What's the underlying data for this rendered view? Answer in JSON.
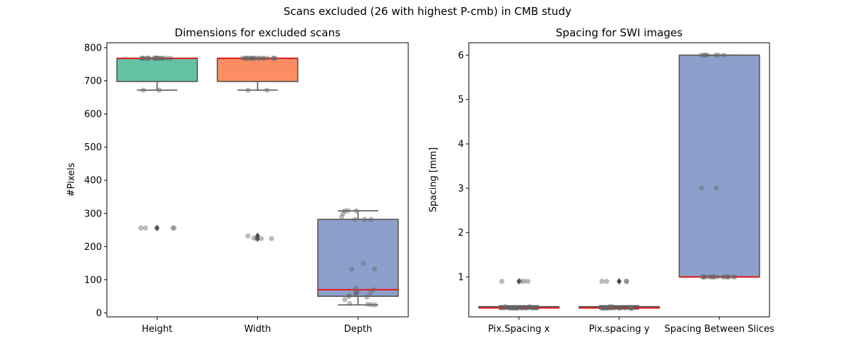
{
  "suptitle": "Scans excluded (26 with highest P-cmb) in CMB study",
  "colors": {
    "median": "#e41a1c",
    "box_edge": "#555555",
    "points": "#666666",
    "outlier": "#444444"
  },
  "chart_data": [
    {
      "type": "box",
      "title": "Dimensions for excluded scans",
      "xlabel": "",
      "ylabel": "#Pixels",
      "ylim": [
        -12,
        815
      ],
      "yticks": [
        0,
        100,
        200,
        300,
        400,
        500,
        600,
        700,
        800
      ],
      "grid": false,
      "categories": [
        "Height",
        "Width",
        "Depth"
      ],
      "boxes": [
        {
          "name": "Height",
          "color": "#66c2a5",
          "q1": 698,
          "median": 768,
          "q3": 768,
          "whisker_low": 672,
          "whisker_high": 768,
          "outliers": [
            256
          ]
        },
        {
          "name": "Width",
          "color": "#fc8d62",
          "q1": 698,
          "median": 768,
          "q3": 768,
          "whisker_low": 672,
          "whisker_high": 768,
          "outliers": [
            224,
            232
          ]
        },
        {
          "name": "Depth",
          "color": "#8da0cb",
          "q1": 50,
          "median": 70,
          "q3": 282,
          "whisker_low": 24,
          "whisker_high": 308,
          "outliers": []
        }
      ],
      "points": [
        [
          768,
          768,
          768,
          768,
          768,
          768,
          768,
          768,
          768,
          768,
          768,
          768,
          768,
          768,
          768,
          768,
          768,
          768,
          672,
          256,
          256,
          256,
          256,
          256,
          672,
          768
        ],
        [
          768,
          768,
          768,
          768,
          768,
          768,
          768,
          768,
          768,
          768,
          768,
          768,
          768,
          768,
          768,
          768,
          768,
          768,
          672,
          224,
          224,
          232,
          224,
          226,
          672,
          768
        ],
        [
          308,
          308,
          308,
          300,
          290,
          282,
          282,
          150,
          132,
          132,
          75,
          65,
          62,
          60,
          58,
          55,
          52,
          50,
          48,
          40,
          28,
          26,
          25,
          24,
          70,
          282
        ]
      ]
    },
    {
      "type": "box",
      "title": "Spacing for SWI images",
      "xlabel": "",
      "ylabel": "Spacing [mm]",
      "ylim": [
        0.1,
        6.28
      ],
      "yticks": [
        1,
        2,
        3,
        4,
        5,
        6
      ],
      "grid": false,
      "categories": [
        "Pix.Spacing x",
        "Pix.spacing y",
        "Spacing Between Slices"
      ],
      "boxes": [
        {
          "name": "Pix.Spacing x",
          "color": "#66c2a5",
          "q1": 0.3,
          "median": 0.3,
          "q3": 0.33,
          "whisker_low": 0.28,
          "whisker_high": 0.35,
          "outliers": [
            0.9
          ]
        },
        {
          "name": "Pix.spacing y",
          "color": "#fc8d62",
          "q1": 0.3,
          "median": 0.3,
          "q3": 0.33,
          "whisker_low": 0.28,
          "whisker_high": 0.35,
          "outliers": [
            0.9
          ]
        },
        {
          "name": "Spacing Between Slices",
          "color": "#8da0cb",
          "q1": 1.0,
          "median": 1.0,
          "q3": 6.0,
          "whisker_low": 1.0,
          "whisker_high": 6.0,
          "outliers": []
        }
      ],
      "points": [
        [
          0.9,
          0.9,
          0.9,
          0.9,
          0.3,
          0.3,
          0.3,
          0.3,
          0.3,
          0.3,
          0.3,
          0.3,
          0.3,
          0.3,
          0.3,
          0.3,
          0.3,
          0.3,
          0.3,
          0.3,
          0.3,
          0.3,
          0.33,
          0.33,
          0.3,
          0.3
        ],
        [
          0.9,
          0.9,
          0.9,
          0.9,
          0.3,
          0.3,
          0.3,
          0.3,
          0.3,
          0.3,
          0.3,
          0.3,
          0.3,
          0.3,
          0.3,
          0.3,
          0.3,
          0.3,
          0.3,
          0.3,
          0.3,
          0.3,
          0.33,
          0.33,
          0.3,
          0.3
        ],
        [
          6,
          6,
          6,
          6,
          6,
          6,
          6,
          3,
          3,
          1,
          1,
          1,
          1,
          1,
          1,
          1,
          1,
          1,
          1,
          1,
          1,
          1,
          1,
          1,
          1,
          1
        ]
      ]
    }
  ]
}
